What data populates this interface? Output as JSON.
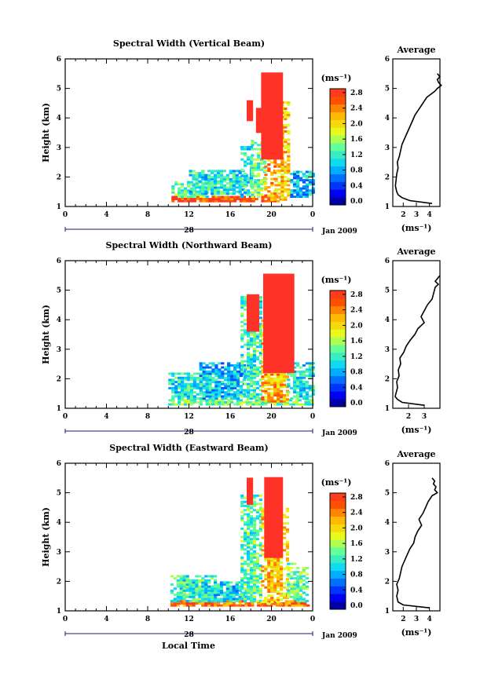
{
  "figure": {
    "x_axis_label": "Local Time",
    "date_label": "Jan 2009",
    "day_label": "28",
    "cbar_unit": "(ms⁻¹)",
    "avg_unit": "(ms⁻¹)"
  },
  "chart_data": [
    {
      "type": "heatmap",
      "title": "Spectral Width (Vertical Beam)",
      "ylabel": "Height (km)",
      "xlim": [
        0,
        24
      ],
      "xticks": [
        "0",
        "4",
        "8",
        "12",
        "16",
        "20",
        "0"
      ],
      "ylim": [
        1,
        6
      ],
      "yticks": [
        "1",
        "2",
        "3",
        "4",
        "5",
        "6"
      ],
      "colorbar": {
        "min": 0.0,
        "max": 3.0,
        "ticks": [
          "0.0",
          "0.4",
          "0.8",
          "1.2",
          "1.6",
          "2.0",
          "2.4",
          "2.8"
        ]
      },
      "regions": [
        {
          "t": [
            10.3,
            21.0
          ],
          "h": [
            1.15,
            1.35
          ],
          "v": 2.8
        },
        {
          "t": [
            10.3,
            14.5
          ],
          "h": [
            1.3,
            1.8
          ],
          "v": 1.4
        },
        {
          "t": [
            12.0,
            17.5
          ],
          "h": [
            1.4,
            2.2
          ],
          "v": 1.2
        },
        {
          "t": [
            17.0,
            18.0
          ],
          "h": [
            1.3,
            3.0
          ],
          "v": 1.2
        },
        {
          "t": [
            18.0,
            19.3
          ],
          "h": [
            1.3,
            3.2
          ],
          "v": 1.5
        },
        {
          "t": [
            21.8,
            24.0
          ],
          "h": [
            1.3,
            2.2
          ],
          "v": 1.0
        },
        {
          "t": [
            19.3,
            20.3
          ],
          "h": [
            1.2,
            4.6
          ],
          "v": 2.4
        },
        {
          "t": [
            20.3,
            21.6
          ],
          "h": [
            1.2,
            4.5
          ],
          "v": 2.2
        },
        {
          "t": [
            19.0,
            21.0
          ],
          "h": [
            2.6,
            5.5
          ],
          "v": 3.0
        },
        {
          "t": [
            17.6,
            18.2
          ],
          "h": [
            3.9,
            4.6
          ],
          "v": 3.0
        },
        {
          "t": [
            18.5,
            19.0
          ],
          "h": [
            3.5,
            4.3
          ],
          "v": 3.0
        }
      ],
      "average_profile": {
        "xlim": [
          1.2,
          4.8
        ],
        "xticks": [
          "2",
          "3",
          "4"
        ],
        "height": [
          1.1,
          1.2,
          1.3,
          1.4,
          1.5,
          1.7,
          1.9,
          2.1,
          2.3,
          2.5,
          2.7,
          2.9,
          3.1,
          3.3,
          3.5,
          3.7,
          3.9,
          4.1,
          4.3,
          4.5,
          4.7,
          4.8,
          4.9,
          5.0,
          5.1,
          5.2,
          5.3,
          5.4,
          5.5
        ],
        "width": [
          4.2,
          2.5,
          1.9,
          1.6,
          1.5,
          1.4,
          1.45,
          1.5,
          1.6,
          1.55,
          1.7,
          1.8,
          1.9,
          2.1,
          2.3,
          2.5,
          2.7,
          2.9,
          3.2,
          3.5,
          3.8,
          4.1,
          4.4,
          4.6,
          4.9,
          4.7,
          4.6,
          4.8,
          4.6
        ]
      }
    },
    {
      "type": "heatmap",
      "title": "Spectral Width (Northward Beam)",
      "ylabel": "Height (km)",
      "xlim": [
        0,
        24
      ],
      "xticks": [
        "0",
        "4",
        "8",
        "12",
        "16",
        "20",
        "0"
      ],
      "ylim": [
        1,
        6
      ],
      "yticks": [
        "1",
        "2",
        "3",
        "4",
        "5",
        "6"
      ],
      "colorbar": {
        "min": 0.0,
        "max": 3.0,
        "ticks": [
          "0.0",
          "0.4",
          "0.8",
          "1.2",
          "1.6",
          "2.0",
          "2.4",
          "2.8"
        ]
      },
      "regions": [
        {
          "t": [
            10.0,
            24.0
          ],
          "h": [
            1.1,
            1.3
          ],
          "v": 1.5
        },
        {
          "t": [
            10.0,
            14.0
          ],
          "h": [
            1.3,
            2.2
          ],
          "v": 1.2
        },
        {
          "t": [
            13.0,
            17.5
          ],
          "h": [
            1.3,
            2.5
          ],
          "v": 1.0
        },
        {
          "t": [
            17.0,
            19.0
          ],
          "h": [
            1.3,
            4.8
          ],
          "v": 1.3
        },
        {
          "t": [
            19.0,
            21.5
          ],
          "h": [
            1.2,
            4.0
          ],
          "v": 2.3
        },
        {
          "t": [
            21.5,
            24.0
          ],
          "h": [
            1.3,
            2.5
          ],
          "v": 1.2
        },
        {
          "t": [
            19.2,
            22.0
          ],
          "h": [
            2.2,
            5.5
          ],
          "v": 3.0
        },
        {
          "t": [
            17.6,
            18.6
          ],
          "h": [
            3.6,
            4.8
          ],
          "v": 3.0
        }
      ],
      "average_profile": {
        "xlim": [
          1.0,
          4.0
        ],
        "xticks": [
          "2",
          "3"
        ],
        "height": [
          1.1,
          1.2,
          1.3,
          1.4,
          1.5,
          1.7,
          1.9,
          2.1,
          2.3,
          2.5,
          2.7,
          2.9,
          3.1,
          3.3,
          3.5,
          3.7,
          3.9,
          4.1,
          4.3,
          4.5,
          4.7,
          4.9,
          5.1,
          5.2,
          5.3,
          5.4,
          5.5
        ],
        "width": [
          3.0,
          1.6,
          1.3,
          1.15,
          1.2,
          1.3,
          1.25,
          1.4,
          1.35,
          1.5,
          1.45,
          1.7,
          1.85,
          2.1,
          2.4,
          2.6,
          3.0,
          2.8,
          3.0,
          3.2,
          3.5,
          3.6,
          3.7,
          3.9,
          3.7,
          3.85,
          4.0
        ]
      }
    },
    {
      "type": "heatmap",
      "title": "Spectral Width (Eastward Beam)",
      "ylabel": "Height (km)",
      "xlim": [
        0,
        24
      ],
      "xticks": [
        "0",
        "4",
        "8",
        "12",
        "16",
        "20",
        "0"
      ],
      "ylim": [
        1,
        6
      ],
      "yticks": [
        "1",
        "2",
        "3",
        "4",
        "5",
        "6"
      ],
      "colorbar": {
        "min": 0.0,
        "max": 3.0,
        "ticks": [
          "0.0",
          "0.4",
          "0.8",
          "1.2",
          "1.6",
          "2.0",
          "2.4",
          "2.8"
        ]
      },
      "regions": [
        {
          "t": [
            10.2,
            23.5
          ],
          "h": [
            1.15,
            1.35
          ],
          "v": 2.6
        },
        {
          "t": [
            10.2,
            14.5
          ],
          "h": [
            1.3,
            2.2
          ],
          "v": 1.3
        },
        {
          "t": [
            13.5,
            17.5
          ],
          "h": [
            1.3,
            2.0
          ],
          "v": 1.1
        },
        {
          "t": [
            17.0,
            19.0
          ],
          "h": [
            1.3,
            4.9
          ],
          "v": 1.4
        },
        {
          "t": [
            19.0,
            21.5
          ],
          "h": [
            1.2,
            4.5
          ],
          "v": 2.2
        },
        {
          "t": [
            21.5,
            23.5
          ],
          "h": [
            1.3,
            2.6
          ],
          "v": 1.5
        },
        {
          "t": [
            19.3,
            21.0
          ],
          "h": [
            2.8,
            5.5
          ],
          "v": 3.0
        },
        {
          "t": [
            17.6,
            18.2
          ],
          "h": [
            4.6,
            5.5
          ],
          "v": 3.0
        }
      ],
      "average_profile": {
        "xlim": [
          1.2,
          4.8
        ],
        "xticks": [
          "2",
          "3",
          "4"
        ],
        "height": [
          1.1,
          1.2,
          1.3,
          1.5,
          1.7,
          1.9,
          2.1,
          2.3,
          2.5,
          2.7,
          2.9,
          3.1,
          3.3,
          3.5,
          3.7,
          3.9,
          4.1,
          4.3,
          4.5,
          4.7,
          4.9,
          5.0,
          5.1,
          5.2,
          5.3,
          5.4,
          5.5
        ],
        "width": [
          4.0,
          2.0,
          1.6,
          1.5,
          1.6,
          1.5,
          1.7,
          1.8,
          1.9,
          2.1,
          2.3,
          2.5,
          2.8,
          2.9,
          3.1,
          3.4,
          3.2,
          3.5,
          3.7,
          3.9,
          4.2,
          4.6,
          4.4,
          4.5,
          4.3,
          4.4,
          4.2
        ]
      }
    }
  ]
}
